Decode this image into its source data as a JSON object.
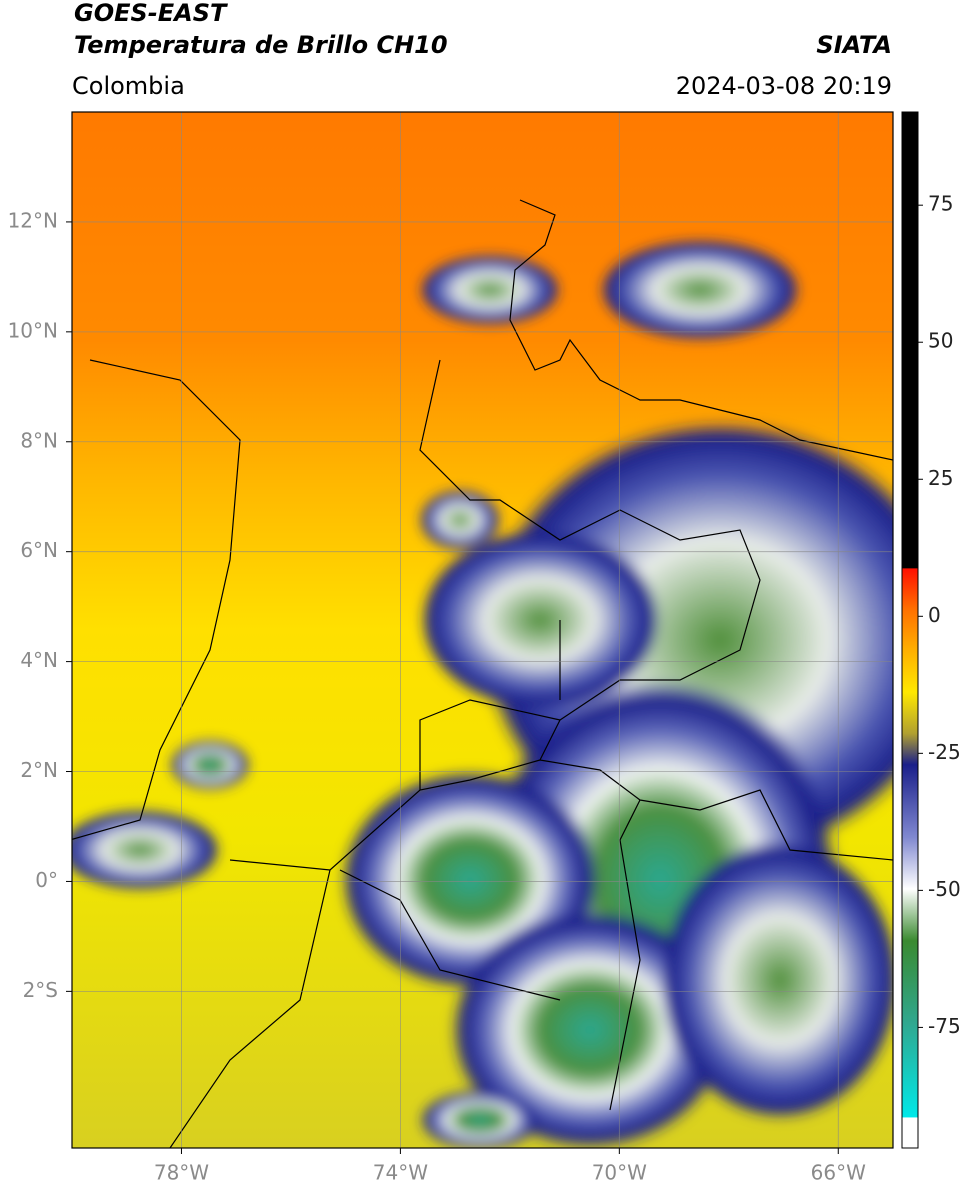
{
  "header": {
    "title": "GOES-EAST",
    "subtitle": "Temperatura de Brillo CH10",
    "source": "SIATA",
    "region": "Colombia",
    "datetime": "2024-03-08 20:19"
  },
  "map": {
    "xlim": [
      -80,
      -65
    ],
    "ylim": [
      -4.85,
      14
    ],
    "yticks": [
      {
        "value": 12,
        "label": "12°N"
      },
      {
        "value": 10,
        "label": "10°N"
      },
      {
        "value": 8,
        "label": "8°N"
      },
      {
        "value": 6,
        "label": "6°N"
      },
      {
        "value": 4,
        "label": "4°N"
      },
      {
        "value": 2,
        "label": "2°N"
      },
      {
        "value": 0,
        "label": "0°"
      },
      {
        "value": -2,
        "label": "2°S"
      }
    ],
    "xticks": [
      {
        "value": -78,
        "label": "78°W"
      },
      {
        "value": -74,
        "label": "74°W"
      },
      {
        "value": -70,
        "label": "70°W"
      },
      {
        "value": -66,
        "label": "66°W"
      }
    ],
    "grid": true
  },
  "colorbar": {
    "lim": [
      -97,
      92
    ],
    "ticks": [
      75,
      50,
      25,
      0,
      -25,
      -50,
      -75
    ]
  }
}
